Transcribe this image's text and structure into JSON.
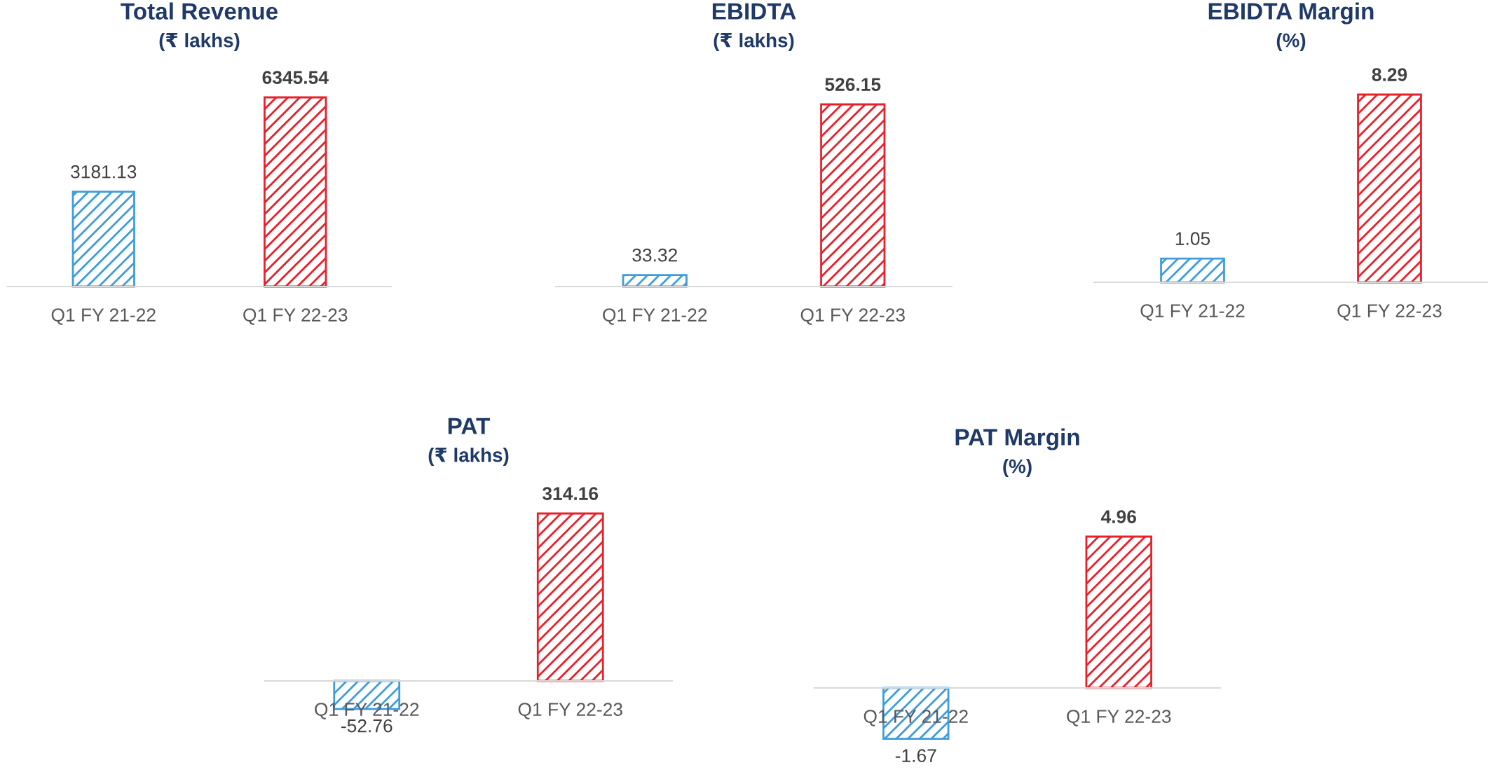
{
  "chart_data": [
    {
      "type": "bar",
      "title": "Total Revenue",
      "subtitle": "(₹ lakhs)",
      "categories": [
        "Q1 FY 21-22",
        "Q1 FY 22-23"
      ],
      "values": [
        3181.13,
        6345.54
      ],
      "colors": [
        "#3d9ddc",
        "#e8202a"
      ],
      "data_labels": true,
      "tick_labels": "x"
    },
    {
      "type": "bar",
      "title": "EBIDTA",
      "subtitle": "(₹ lakhs)",
      "categories": [
        "Q1 FY 21-22",
        "Q1 FY 22-23"
      ],
      "values": [
        33.32,
        526.15
      ],
      "colors": [
        "#3d9ddc",
        "#e8202a"
      ],
      "data_labels": true,
      "tick_labels": "x"
    },
    {
      "type": "bar",
      "title": "EBIDTA Margin",
      "subtitle": "(%)",
      "categories": [
        "Q1 FY 21-22",
        "Q1 FY 22-23"
      ],
      "values": [
        1.05,
        8.29
      ],
      "colors": [
        "#3d9ddc",
        "#e8202a"
      ],
      "data_labels": true,
      "tick_labels": "x"
    },
    {
      "type": "bar",
      "title": "PAT",
      "subtitle": "(₹ lakhs)",
      "categories": [
        "Q1 FY 21-22",
        "Q1 FY 22-23"
      ],
      "values": [
        -52.76,
        314.16
      ],
      "colors": [
        "#3d9ddc",
        "#e8202a"
      ],
      "data_labels": true,
      "tick_labels": "x"
    },
    {
      "type": "bar",
      "title": "PAT Margin",
      "subtitle": "(%)",
      "categories": [
        "Q1 FY 21-22",
        "Q1 FY 22-23"
      ],
      "values": [
        -1.67,
        4.96
      ],
      "colors": [
        "#3d9ddc",
        "#e8202a"
      ],
      "data_labels": true,
      "tick_labels": "x"
    }
  ]
}
